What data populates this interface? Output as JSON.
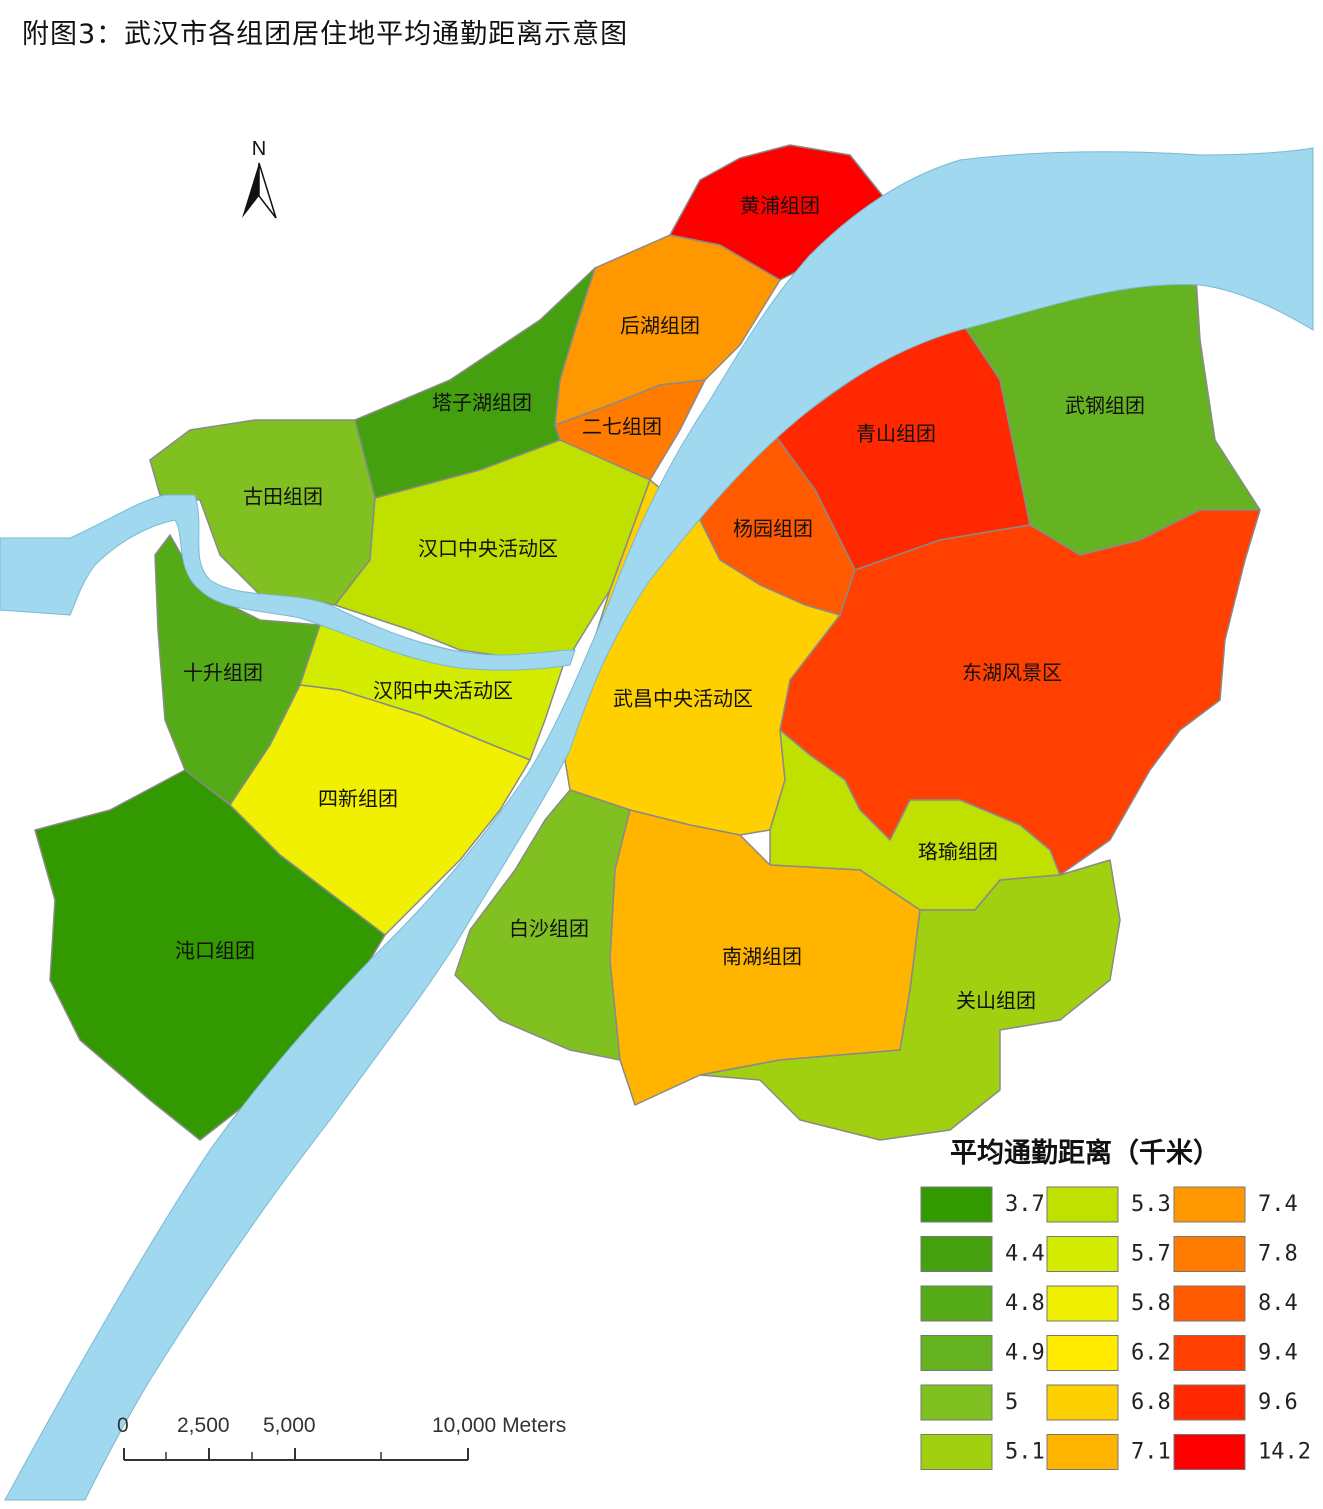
{
  "title": "附图3：武汉市各组团居住地平均通勤距离示意图",
  "north_label": "N",
  "colors": {
    "river": "#a0d8ef",
    "c37": "#339900",
    "c44": "#44a00e",
    "c48": "#55aa18",
    "c49": "#66b322",
    "c50": "#80c020",
    "c51": "#a0d010",
    "c53": "#c0e000",
    "c57": "#d4ec00",
    "c58": "#f0f000",
    "c62": "#ffea00",
    "c68": "#ffd000",
    "c71": "#ffb400",
    "c74": "#ff9800",
    "c78": "#ff7c00",
    "c84": "#ff5a00",
    "c94": "#ff4000",
    "c96": "#ff2800",
    "c142": "#ff0000"
  },
  "regions": [
    {
      "name": "黄浦组团",
      "value": 14.2
    },
    {
      "name": "后湖组团",
      "value": 7.4
    },
    {
      "name": "二七组团",
      "value": 7.8
    },
    {
      "name": "塔子湖组团",
      "value": 4.4
    },
    {
      "name": "古田组团",
      "value": 5.0
    },
    {
      "name": "汉口中央活动区",
      "value": 5.3
    },
    {
      "name": "十升组团",
      "value": 4.8
    },
    {
      "name": "汉阳中央活动区",
      "value": 5.7
    },
    {
      "name": "四新组团",
      "value": 5.8
    },
    {
      "name": "沌口组团",
      "value": 3.7
    },
    {
      "name": "青山组团",
      "value": 9.6
    },
    {
      "name": "武钢组团",
      "value": 4.9
    },
    {
      "name": "杨园组团",
      "value": 8.4
    },
    {
      "name": "东湖风景区",
      "value": 9.4
    },
    {
      "name": "武昌中央活动区",
      "value": 6.8
    },
    {
      "name": "珞瑜组团",
      "value": 5.3
    },
    {
      "name": "白沙组团",
      "value": 5.0
    },
    {
      "name": "南湖组团",
      "value": 7.1
    },
    {
      "name": "关山组团",
      "value": 5.1
    }
  ],
  "legend": {
    "title": "平均通勤距离（千米）",
    "items": [
      {
        "value": "3.7",
        "color": "#339900"
      },
      {
        "value": "4.4",
        "color": "#44a00e"
      },
      {
        "value": "4.8",
        "color": "#55aa18"
      },
      {
        "value": "4.9",
        "color": "#66b322"
      },
      {
        "value": "5",
        "color": "#80c020"
      },
      {
        "value": "5.1",
        "color": "#a0d010"
      },
      {
        "value": "5.3",
        "color": "#c0e000"
      },
      {
        "value": "5.7",
        "color": "#d4ec00"
      },
      {
        "value": "5.8",
        "color": "#f0f000"
      },
      {
        "value": "6.2",
        "color": "#ffea00"
      },
      {
        "value": "6.8",
        "color": "#ffd000"
      },
      {
        "value": "7.1",
        "color": "#ffb400"
      },
      {
        "value": "7.4",
        "color": "#ff9800"
      },
      {
        "value": "7.8",
        "color": "#ff7c00"
      },
      {
        "value": "8.4",
        "color": "#ff5a00"
      },
      {
        "value": "9.4",
        "color": "#ff4000"
      },
      {
        "value": "9.6",
        "color": "#ff2800"
      },
      {
        "value": "14.2",
        "color": "#ff0000"
      }
    ]
  },
  "scale_bar": {
    "labels": [
      "0",
      "2,500",
      "5,000",
      "10,000 Meters"
    ]
  }
}
